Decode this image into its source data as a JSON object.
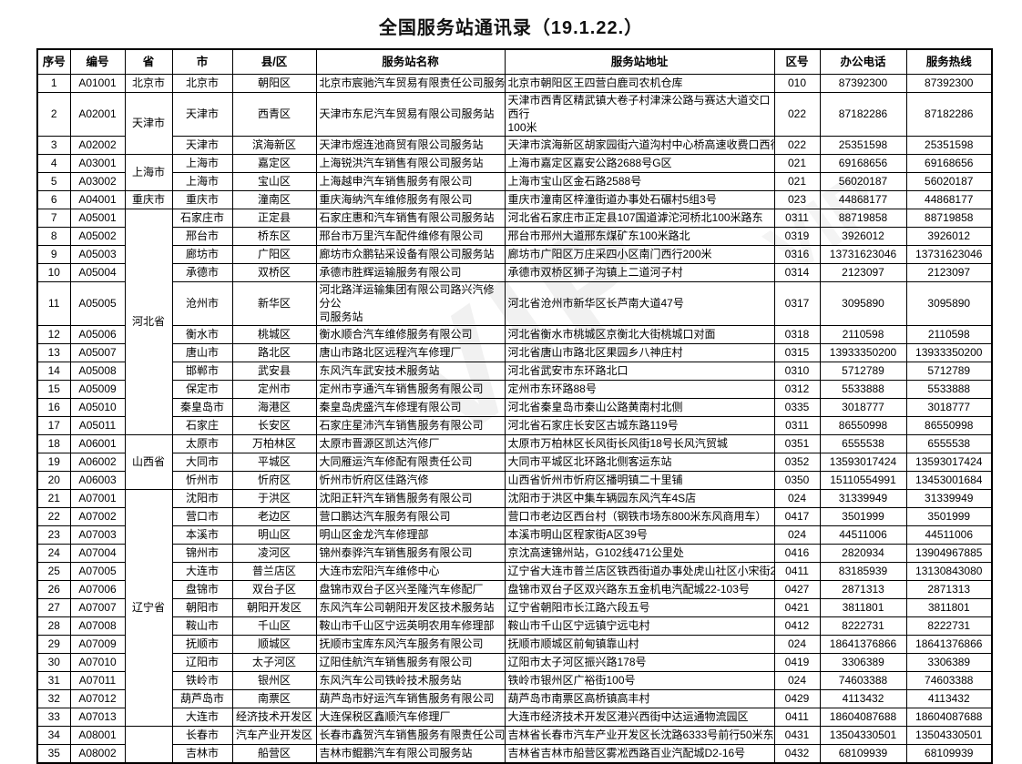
{
  "title": "全国服务站通讯录（19.1.22.）",
  "watermark": {
    "text": "VIP"
  },
  "table": {
    "headers": [
      "序号",
      "编号",
      "省",
      "市",
      "县/区",
      "服务站名称",
      "服务站地址",
      "区号",
      "办公电话",
      "服务热线"
    ],
    "rows": [
      {
        "no": "1",
        "code": "A01001",
        "province": "北京市",
        "province_rowspan": 1,
        "city": "北京市",
        "district": "朝阳区",
        "name": "北京市宸驰汽车贸易有限责任公司服务站",
        "address": "北京市朝阳区王四营白鹿司农机仓库",
        "area_code": "010",
        "office_phone": "87392300",
        "hotline": "87392300"
      },
      {
        "no": "2",
        "code": "A02001",
        "province": "天津市",
        "province_rowspan": 2,
        "city": "天津市",
        "district": "西青区",
        "name": "天津市东尼汽车贸易有限公司服务站",
        "address": "天津市西青区精武镇大卷子村津涞公路与赛达大道交口西行\n100米",
        "area_code": "022",
        "office_phone": "87182286",
        "hotline": "87182286"
      },
      {
        "no": "3",
        "code": "A02002",
        "city": "天津市",
        "district": "滨海新区",
        "name": "天津市煜连池商贸有限公司服务站",
        "address": "天津市滨海新区胡家园街六道沟村中心桥高速收费口西行400",
        "area_code": "022",
        "office_phone": "25351598",
        "hotline": "25351598"
      },
      {
        "no": "4",
        "code": "A03001",
        "province": "上海市",
        "province_rowspan": 2,
        "city": "上海市",
        "district": "嘉定区",
        "name": "上海锐洪汽车销售有限公司服务站",
        "address": "上海市嘉定区嘉安公路2688号G区",
        "area_code": "021",
        "office_phone": "69168656",
        "hotline": "69168656"
      },
      {
        "no": "5",
        "code": "A03002",
        "city": "上海市",
        "district": "宝山区",
        "name": "上海越申汽车销售服务有限公司",
        "address": "上海市宝山区金石路2588号",
        "area_code": "021",
        "office_phone": "56020187",
        "hotline": "56020187"
      },
      {
        "no": "6",
        "code": "A04001",
        "province": "重庆市",
        "province_rowspan": 1,
        "city": "重庆市",
        "district": "潼南区",
        "name": "重庆海纳汽车维修服务有限公司",
        "address": "重庆市潼南区梓潼街道办事处石碾村5组3号",
        "area_code": "023",
        "office_phone": "44868177",
        "hotline": "44868177"
      },
      {
        "no": "7",
        "code": "A05001",
        "province": "河北省",
        "province_rowspan": 11,
        "city": "石家庄市",
        "district": "正定县",
        "name": "石家庄惠和汽车销售有限公司服务站",
        "address": "河北省石家庄市正定县107国道滹沱河桥北100米路东",
        "area_code": "0311",
        "office_phone": "88719858",
        "hotline": "88719858"
      },
      {
        "no": "8",
        "code": "A05002",
        "city": "邢台市",
        "district": "桥东区",
        "name": "邢台市万里汽车配件维修有限公司",
        "address": "邢台市邢州大道邢东煤矿东100米路北",
        "area_code": "0319",
        "office_phone": "3926012",
        "hotline": "3926012"
      },
      {
        "no": "9",
        "code": "A05003",
        "city": "廊坊市",
        "district": "广阳区",
        "name": "廊坊市众鹏钻采设备有限公司服务站",
        "address": "廊坊市广阳区万庄采四小区南门西行200米",
        "area_code": "0316",
        "office_phone": "13731623046",
        "hotline": "13731623046"
      },
      {
        "no": "10",
        "code": "A05004",
        "city": "承德市",
        "district": "双桥区",
        "name": "承德市胜辉运输服务有限公司",
        "address": "承德市双桥区狮子沟镇上二道河子村",
        "area_code": "0314",
        "office_phone": "2123097",
        "hotline": "2123097"
      },
      {
        "no": "11",
        "code": "A05005",
        "city": "沧州市",
        "district": "新华区",
        "name": "河北路洋运输集团有限公司路兴汽修分公\n司服务站",
        "address": "河北省沧州市新华区长芦南大道47号",
        "area_code": "0317",
        "office_phone": "3095890",
        "hotline": "3095890"
      },
      {
        "no": "12",
        "code": "A05006",
        "city": "衡水市",
        "district": "桃城区",
        "name": "衡水顺合汽车维修服务有限公司",
        "address": "河北省衡水市桃城区京衡北大街桃城口对面",
        "area_code": "0318",
        "office_phone": "2110598",
        "hotline": "2110598"
      },
      {
        "no": "13",
        "code": "A05007",
        "city": "唐山市",
        "district": "路北区",
        "name": "唐山市路北区远程汽车修理厂",
        "address": "河北省唐山市路北区果园乡八神庄村",
        "area_code": "0315",
        "office_phone": "13933350200",
        "hotline": "13933350200"
      },
      {
        "no": "14",
        "code": "A05008",
        "city": "邯郸市",
        "district": "武安县",
        "name": "东风汽车武安技术服务站",
        "address": "河北省武安市东环路北口",
        "area_code": "0310",
        "office_phone": "5712789",
        "hotline": "5712789"
      },
      {
        "no": "15",
        "code": "A05009",
        "city": "保定市",
        "district": "定州市",
        "name": "定州市亨通汽车销售服务有限公司",
        "address": "定州市东环路88号",
        "area_code": "0312",
        "office_phone": "5533888",
        "hotline": "5533888"
      },
      {
        "no": "16",
        "code": "A05010",
        "city": "秦皇岛市",
        "district": "海港区",
        "name": "秦皇岛虎盛汽车修理有限公司",
        "address": "河北省秦皇岛市秦山公路黄南村北侧",
        "area_code": "0335",
        "office_phone": "3018777",
        "hotline": "3018777"
      },
      {
        "no": "17",
        "code": "A05011",
        "city": "石家庄",
        "district": "长安区",
        "name": "石家庄星沛汽车销售服务有限公司",
        "address": "河北省石家庄长安区古城东路119号",
        "area_code": "0311",
        "office_phone": "86550998",
        "hotline": "86550998"
      },
      {
        "no": "18",
        "code": "A06001",
        "province": "山西省",
        "province_rowspan": 3,
        "city": "太原市",
        "district": "万柏林区",
        "name": "太原市晋源区凯达汽修厂",
        "address": "太原市万柏林区长风街长风街18号长风汽贸城",
        "area_code": "0351",
        "office_phone": "6555538",
        "hotline": "6555538"
      },
      {
        "no": "19",
        "code": "A06002",
        "city": "大同市",
        "district": "平城区",
        "name": "大同雁运汽车修配有限责任公司",
        "address": "大同市平城区北环路北侧客运东站",
        "area_code": "0352",
        "office_phone": "13593017424",
        "hotline": "13593017424"
      },
      {
        "no": "20",
        "code": "A06003",
        "city": "忻州市",
        "district": "忻府区",
        "name": "忻州市忻府区佳路汽修",
        "address": "山西省忻州市忻府区播明镇二十里铺",
        "area_code": "0350",
        "office_phone": "15110554991",
        "hotline": "13453001684"
      },
      {
        "no": "21",
        "code": "A07001",
        "province": "辽宁省",
        "province_rowspan": 13,
        "city": "沈阳市",
        "district": "于洪区",
        "name": "沈阳正轩汽车销售服务有限公司",
        "address": "沈阳市于洪区中集车辆园东风汽车4S店",
        "area_code": "024",
        "office_phone": "31339949",
        "hotline": "31339949"
      },
      {
        "no": "22",
        "code": "A07002",
        "city": "营口市",
        "district": "老边区",
        "name": "营口鹏达汽车服务有限公司",
        "address": "营口市老边区西台村（钢铁市场东800米东风商用车）",
        "area_code": "0417",
        "office_phone": "3501999",
        "hotline": "3501999"
      },
      {
        "no": "23",
        "code": "A07003",
        "city": "本溪市",
        "district": "明山区",
        "name": "明山区金龙汽车修理部",
        "address": "本溪市明山区程家街A区39号",
        "area_code": "024",
        "office_phone": "44511006",
        "hotline": "44511006"
      },
      {
        "no": "24",
        "code": "A07004",
        "city": "锦州市",
        "district": "凌河区",
        "name": "锦州泰骅汽车销售服务有限公司",
        "address": "京沈高速锦州站，G102线471公里处",
        "area_code": "0416",
        "office_phone": "2820934",
        "hotline": "13904967885"
      },
      {
        "no": "25",
        "code": "A07005",
        "city": "大连市",
        "district": "普兰店区",
        "name": "大连市宏阳汽车维修中心",
        "address": "辽宁省大连市普兰店区铁西街道办事处虎山社区小宋街28号-",
        "area_code": "0411",
        "office_phone": "83185939",
        "hotline": "13130843080"
      },
      {
        "no": "26",
        "code": "A07006",
        "city": "盘锦市",
        "district": "双台子区",
        "name": "盘锦市双台子区兴圣隆汽车修配厂",
        "address": "盘锦市双台子区双兴路东五金机电汽配城22-103号",
        "area_code": "0427",
        "office_phone": "2871313",
        "hotline": "2871313"
      },
      {
        "no": "27",
        "code": "A07007",
        "city": "朝阳市",
        "district": "朝阳开发区",
        "name": "东风汽车公司朝阳开发区技术服务站",
        "address": "辽宁省朝阳市长江路六段五号",
        "area_code": "0421",
        "office_phone": "3811801",
        "hotline": "3811801"
      },
      {
        "no": "28",
        "code": "A07008",
        "city": "鞍山市",
        "district": "千山区",
        "name": "鞍山市千山区宁远英明农用车修理部",
        "address": "鞍山市千山区宁远镇宁远屯村",
        "area_code": "0412",
        "office_phone": "8222731",
        "hotline": "8222731"
      },
      {
        "no": "29",
        "code": "A07009",
        "city": "抚顺市",
        "district": "顺城区",
        "name": "抚顺市宝库东风汽车服务有限公司",
        "address": "抚顺市顺城区前甸镇靠山村",
        "area_code": "024",
        "office_phone": "18641376866",
        "hotline": "18641376866"
      },
      {
        "no": "30",
        "code": "A07010",
        "city": "辽阳市",
        "district": "太子河区",
        "name": "辽阳佳航汽车销售服务有限公司",
        "address": "辽阳市太子河区振兴路178号",
        "area_code": "0419",
        "office_phone": "3306389",
        "hotline": "3306389"
      },
      {
        "no": "31",
        "code": "A07011",
        "city": "铁岭市",
        "district": "银州区",
        "name": "东风汽车公司铁岭技术服务站",
        "address": "铁岭市银州区广裕街100号",
        "area_code": "024",
        "office_phone": "74603388",
        "hotline": "74603388"
      },
      {
        "no": "32",
        "code": "A07012",
        "city": "葫芦岛市",
        "district": "南票区",
        "name": "葫芦岛市好运汽车销售服务有限公司",
        "address": "葫芦岛市南票区高桥镇高丰村",
        "area_code": "0429",
        "office_phone": "4113432",
        "hotline": "4113432"
      },
      {
        "no": "33",
        "code": "A07013",
        "city": "大连市",
        "district": "经济技术开发区",
        "name": "大连保税区鑫顺汽车修理厂",
        "address": "大连市经济技术开发区港兴西街中达运通物流园区",
        "area_code": "0411",
        "office_phone": "18604087688",
        "hotline": "18604087688"
      },
      {
        "no": "34",
        "code": "A08001",
        "province": "",
        "province_rowspan": 2,
        "city": "长春市",
        "district": "汽车产业开发区",
        "name": "长春市鑫贺汽车销售服务有限责任公司",
        "address": "吉林省长春市汽车产业开发区长沈路6333号前行50米东风服",
        "area_code": "0431",
        "office_phone": "13504330501",
        "hotline": "13504330501"
      },
      {
        "no": "35",
        "code": "A08002",
        "city": "吉林市",
        "district": "船营区",
        "name": "吉林市鲲鹏汽车有限公司服务站",
        "address": "吉林省吉林市船营区雾凇西路百业汽配城D2-16号",
        "area_code": "0432",
        "office_phone": "68109939",
        "hotline": "68109939"
      }
    ]
  }
}
